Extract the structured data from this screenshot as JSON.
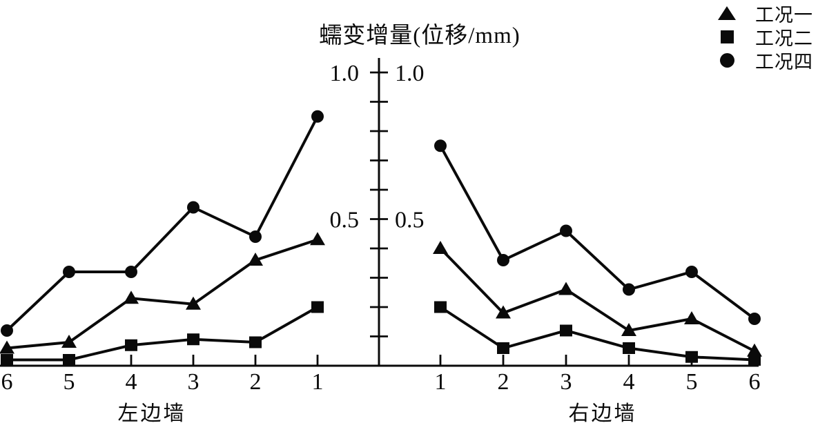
{
  "title": "蠕变增量(位移/mm)",
  "legend": {
    "items": [
      {
        "label": "工况一",
        "marker": "triangle"
      },
      {
        "label": "工况二",
        "marker": "square"
      },
      {
        "label": "工况四",
        "marker": "circle"
      }
    ]
  },
  "colors": {
    "ink": "#0a0a0a",
    "background": "#ffffff"
  },
  "chart_data": {
    "type": "line",
    "title": "蠕变增量(位移/mm)",
    "ylabel": "蠕变增量(位移/mm)",
    "ylim": [
      0,
      1.0
    ],
    "grid": false,
    "legend_position": "top-right",
    "y_axis": {
      "labeled_ticks": [
        {
          "value": 1.0,
          "label": "1.0"
        },
        {
          "value": 0.5,
          "label": "0.5"
        }
      ],
      "minor_tick_step": 0.1,
      "labels_on_both_sides": true
    },
    "panels": [
      {
        "name": "左边墙",
        "side": "left",
        "categories": [
          "6",
          "5",
          "4",
          "3",
          "2",
          "1"
        ],
        "series": [
          {
            "name": "工况一",
            "marker": "triangle",
            "values": [
              0.06,
              0.08,
              0.23,
              0.21,
              0.36,
              0.43
            ]
          },
          {
            "name": "工况二",
            "marker": "square",
            "values": [
              0.02,
              0.02,
              0.07,
              0.09,
              0.08,
              0.2
            ]
          },
          {
            "name": "工况四",
            "marker": "circle",
            "values": [
              0.12,
              0.32,
              0.32,
              0.54,
              0.44,
              0.85
            ]
          }
        ]
      },
      {
        "name": "右边墙",
        "side": "right",
        "categories": [
          "1",
          "2",
          "3",
          "4",
          "5",
          "6"
        ],
        "series": [
          {
            "name": "工况一",
            "marker": "triangle",
            "values": [
              0.4,
              0.18,
              0.26,
              0.12,
              0.16,
              0.05
            ]
          },
          {
            "name": "工况二",
            "marker": "square",
            "values": [
              0.2,
              0.06,
              0.12,
              0.06,
              0.03,
              0.02
            ]
          },
          {
            "name": "工况四",
            "marker": "circle",
            "values": [
              0.75,
              0.36,
              0.46,
              0.26,
              0.32,
              0.16
            ]
          }
        ]
      }
    ]
  }
}
